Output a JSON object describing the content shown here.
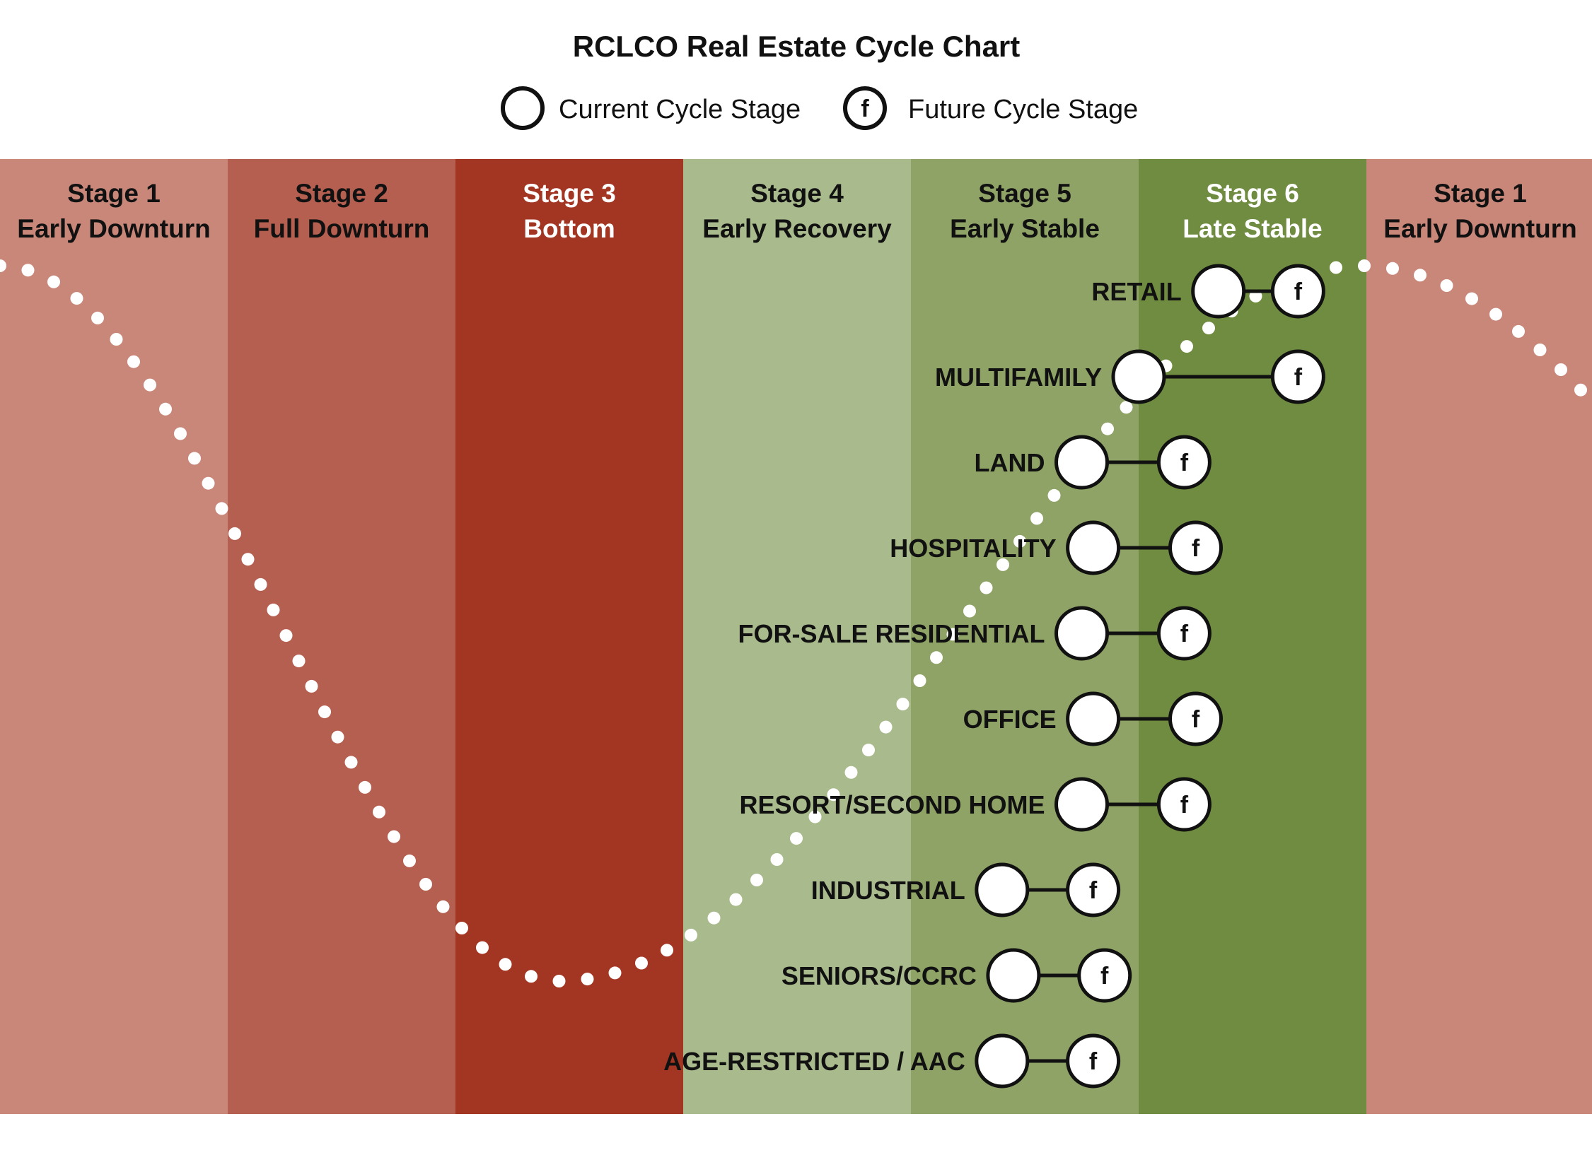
{
  "title": "RCLCO Real Estate Cycle Chart",
  "legend": {
    "current_label": "Current Cycle Stage",
    "future_label": "Future Cycle Stage",
    "future_symbol": "f"
  },
  "stages": [
    {
      "number_label": "Stage 1",
      "name": "Early Downturn",
      "color": "#c9877a",
      "text_color": "#111111"
    },
    {
      "number_label": "Stage 2",
      "name": "Full Downturn",
      "color": "#b55f51",
      "text_color": "#111111"
    },
    {
      "number_label": "Stage 3",
      "name": "Bottom",
      "color": "#a33623",
      "text_color": "#ffffff"
    },
    {
      "number_label": "Stage 4",
      "name": "Early Recovery",
      "color": "#a9bb8c",
      "text_color": "#111111"
    },
    {
      "number_label": "Stage 5",
      "name": "Early Stable",
      "color": "#8ea365",
      "text_color": "#111111"
    },
    {
      "number_label": "Stage 6",
      "name": "Late Stable",
      "color": "#6f8c40",
      "text_color": "#ffffff"
    },
    {
      "number_label": "Stage 1",
      "name": "Early Downturn",
      "color": "#c9877a",
      "text_color": "#111111"
    }
  ],
  "sectors": [
    {
      "name": "RETAIL",
      "current_stage": 6.35,
      "future_stage": 6.7
    },
    {
      "name": "MULTIFAMILY",
      "current_stage": 6.0,
      "future_stage": 6.7
    },
    {
      "name": "LAND",
      "current_stage": 5.75,
      "future_stage": 6.2
    },
    {
      "name": "HOSPITALITY",
      "current_stage": 5.8,
      "future_stage": 6.25
    },
    {
      "name": "FOR-SALE RESIDENTIAL",
      "current_stage": 5.75,
      "future_stage": 6.2
    },
    {
      "name": "OFFICE",
      "current_stage": 5.8,
      "future_stage": 6.25
    },
    {
      "name": "RESORT/SECOND HOME",
      "current_stage": 5.75,
      "future_stage": 6.2
    },
    {
      "name": "INDUSTRIAL",
      "current_stage": 5.4,
      "future_stage": 5.8
    },
    {
      "name": "SENIORS/CCRC",
      "current_stage": 5.45,
      "future_stage": 5.85
    },
    {
      "name": "AGE-RESTRICTED / AAC",
      "current_stage": 5.4,
      "future_stage": 5.8
    }
  ],
  "curve_color": "#ffffff"
}
